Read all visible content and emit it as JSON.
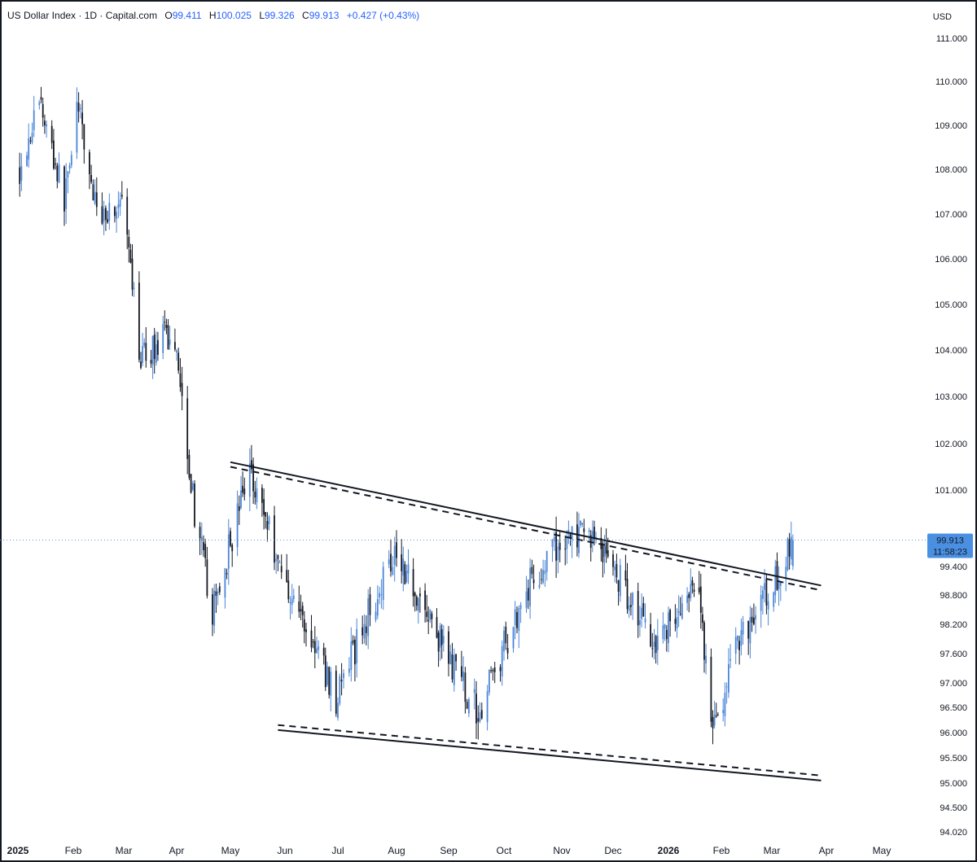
{
  "header": {
    "title": "US Dollar Index · 1D · Capital.com",
    "open_label": "O",
    "open": "99.411",
    "high_label": "H",
    "high": "100.025",
    "low_label": "L",
    "low": "99.326",
    "close_label": "C",
    "close": "99.913",
    "change": "+0.427 (+0.43%)"
  },
  "price_tag": {
    "price": "99.913",
    "countdown": "11:58:23"
  },
  "colors": {
    "up": "#4a86d9",
    "down": "#131722",
    "tag": "#4a90e2",
    "last_line": "#5b9bd5"
  },
  "chart_data": {
    "type": "candlestick",
    "title": "US Dollar Index",
    "currency": "USD",
    "scale": "piecewise (compressed below 100)",
    "y_ticks": [
      "111.000",
      "110.000",
      "109.000",
      "108.000",
      "107.000",
      "106.000",
      "105.000",
      "104.000",
      "103.000",
      "102.000",
      "101.000",
      "99.400",
      "98.800",
      "98.200",
      "97.600",
      "97.000",
      "96.500",
      "96.000",
      "95.500",
      "95.000",
      "94.500",
      "94.020"
    ],
    "x_ticks": [
      "2025",
      "Feb",
      "Mar",
      "Apr",
      "May",
      "Jun",
      "Jul",
      "Aug",
      "Sep",
      "Oct",
      "Nov",
      "Dec",
      "2026",
      "Feb",
      "Mar",
      "Apr",
      "May"
    ],
    "last_price": 99.913,
    "approx_close_path": [
      [
        "2025-01-02",
        108.0
      ],
      [
        "2025-01-13",
        109.6
      ],
      [
        "2025-01-27",
        107.3
      ],
      [
        "2025-02-03",
        109.5
      ],
      [
        "2025-02-14",
        107.0
      ],
      [
        "2025-02-28",
        107.2
      ],
      [
        "2025-03-11",
        103.8
      ],
      [
        "2025-03-26",
        104.3
      ],
      [
        "2025-04-01",
        104.1
      ],
      [
        "2025-04-11",
        100.5
      ],
      [
        "2025-04-21",
        98.4
      ],
      [
        "2025-05-12",
        101.5
      ],
      [
        "2025-05-30",
        99.3
      ],
      [
        "2025-06-30",
        96.7
      ],
      [
        "2025-07-31",
        99.8
      ],
      [
        "2025-08-29",
        97.7
      ],
      [
        "2025-09-17",
        96.4
      ],
      [
        "2025-10-14",
        99.0
      ],
      [
        "2025-11-04",
        100.0
      ],
      [
        "2025-11-21",
        100.0
      ],
      [
        "2025-12-24",
        97.9
      ],
      [
        "2026-01-19",
        98.9
      ],
      [
        "2026-01-27",
        95.9
      ],
      [
        "2026-02-10",
        97.9
      ],
      [
        "2026-03-02",
        99.0
      ],
      [
        "2026-03-13",
        99.913
      ]
    ],
    "trendlines": [
      {
        "style": "solid",
        "from": [
          "2025-05-01",
          101.6
        ],
        "to": [
          "2026-03-29",
          99.0
        ]
      },
      {
        "style": "dashed",
        "from": [
          "2025-05-01",
          101.5
        ],
        "to": [
          "2026-03-29",
          98.9
        ]
      },
      {
        "style": "solid",
        "from": [
          "2025-05-28",
          96.05
        ],
        "to": [
          "2026-03-29",
          95.05
        ]
      },
      {
        "style": "dashed",
        "from": [
          "2025-05-28",
          96.15
        ],
        "to": [
          "2026-03-29",
          95.15
        ]
      }
    ]
  }
}
